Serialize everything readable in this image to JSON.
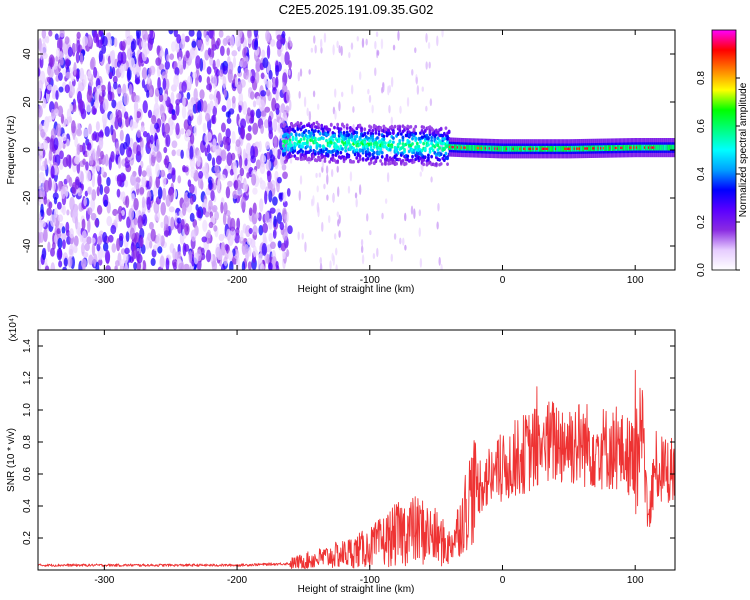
{
  "chart_data": [
    {
      "type": "heatmap",
      "title": "C2E5.2025.191.09.35.G02",
      "xlabel": "Height of straight line (km)",
      "ylabel": "Frequency (Hz)",
      "xlim": [
        -350,
        130
      ],
      "ylim": [
        -50,
        50
      ],
      "xticks": [
        -300,
        -200,
        -100,
        0,
        100
      ],
      "yticks": [
        -40,
        -20,
        0,
        20,
        40
      ],
      "colorbar": {
        "label": "Normalized spectral amplitude",
        "range": [
          0,
          1
        ],
        "ticks": [
          "0.0",
          "0.2",
          "0.4",
          "0.6",
          "0.8"
        ],
        "colors": [
          "#ffffff",
          "#e6ccff",
          "#8a2be2",
          "#5a00ff",
          "#0000ff",
          "#00a0ff",
          "#00ffff",
          "#00ff80",
          "#00ff00",
          "#ffff00",
          "#ff8000",
          "#ff0000",
          "#ff00ff"
        ]
      },
      "regions": [
        {
          "x_from": -350,
          "x_to": -160,
          "freq_from": -50,
          "freq_to": 50,
          "amplitude": 0.1,
          "pattern": "broadband noise"
        },
        {
          "x_from": -165,
          "x_to": -40,
          "freq_from": -8,
          "freq_to": 10,
          "amplitude": 0.35,
          "pattern": "signal band"
        },
        {
          "x_from": -40,
          "x_to": 130,
          "freq_from": -2,
          "freq_to": 3,
          "amplitude": 0.85,
          "pattern": "narrow signal band"
        }
      ],
      "signal_center_freq": [
        {
          "x": -165,
          "f": 3
        },
        {
          "x": -150,
          "f": 4
        },
        {
          "x": -130,
          "f": 3
        },
        {
          "x": -110,
          "f": 2.5
        },
        {
          "x": -90,
          "f": 2
        },
        {
          "x": -70,
          "f": 2
        },
        {
          "x": -50,
          "f": 1.5
        },
        {
          "x": -30,
          "f": 1
        },
        {
          "x": 0,
          "f": 0.5
        },
        {
          "x": 50,
          "f": 0.5
        },
        {
          "x": 100,
          "f": 1
        },
        {
          "x": 130,
          "f": 1
        }
      ]
    },
    {
      "type": "line",
      "xlabel": "Height of straight line (km)",
      "ylabel": "SNR (10 * v/v)",
      "y_multiplier_label": "(x10⁴)",
      "xlim": [
        -350,
        130
      ],
      "ylim": [
        0,
        1.5
      ],
      "xticks": [
        -300,
        -200,
        -100,
        0,
        100
      ],
      "yticks": [
        0.2,
        0.4,
        0.6,
        0.8,
        1.0,
        1.2,
        1.4
      ],
      "series": [
        {
          "color": "#ee3333",
          "x": [
            -350,
            -300,
            -250,
            -200,
            -160,
            -140,
            -120,
            -100,
            -90,
            -80,
            -70,
            -60,
            -50,
            -40,
            -30,
            -25,
            -20,
            -15,
            -10,
            -5,
            0,
            10,
            20,
            30,
            40,
            50,
            60,
            70,
            80,
            90,
            100,
            105,
            110,
            115,
            120,
            130
          ],
          "y": [
            0.03,
            0.03,
            0.03,
            0.03,
            0.04,
            0.07,
            0.1,
            0.14,
            0.18,
            0.22,
            0.25,
            0.24,
            0.2,
            0.14,
            0.32,
            0.45,
            0.52,
            0.55,
            0.58,
            0.6,
            0.62,
            0.7,
            0.74,
            0.78,
            0.8,
            0.8,
            0.79,
            0.77,
            0.76,
            0.73,
            0.7,
            0.9,
            0.3,
            0.65,
            0.62,
            0.63
          ]
        }
      ]
    }
  ]
}
